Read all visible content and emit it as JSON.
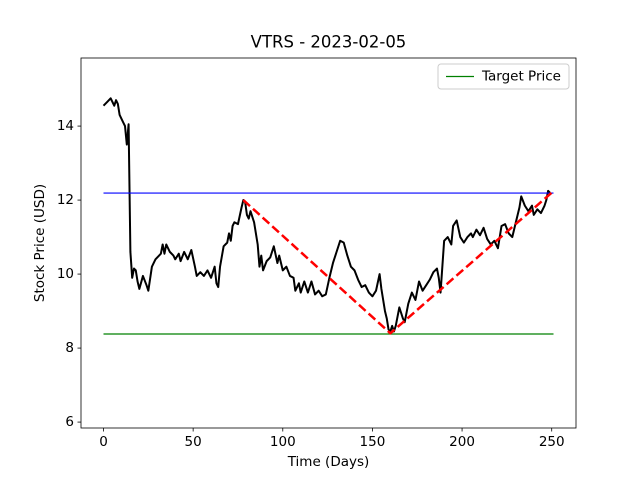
{
  "chart_data": {
    "type": "line",
    "title": "VTRS - 2023-02-05",
    "xlabel": "Time (Days)",
    "ylabel": "Stock Price (USD)",
    "xlim": [
      -12.55,
      263.55
    ],
    "ylim": [
      5.84,
      15.84
    ],
    "xticks": [
      0,
      50,
      100,
      150,
      200,
      250
    ],
    "yticks": [
      6,
      8,
      10,
      12,
      14
    ],
    "legend": "upper right",
    "series": [
      {
        "color": "#000000",
        "width": 2,
        "x": [
          0,
          2,
          4,
          6,
          7,
          8,
          9,
          11,
          12,
          13,
          14,
          15,
          16,
          17,
          18,
          19,
          20,
          22,
          24,
          25,
          27,
          29,
          32,
          33,
          34,
          35,
          37,
          39,
          40,
          42,
          43,
          45,
          47,
          49,
          51,
          52,
          54,
          56,
          58,
          60,
          62,
          63,
          64,
          65,
          67,
          69,
          70,
          71,
          72,
          73,
          75,
          77,
          78,
          79,
          80,
          81,
          82,
          84,
          86,
          87,
          88,
          89,
          91,
          93,
          95,
          97,
          98,
          100,
          102,
          104,
          106,
          107,
          109,
          110,
          112,
          114,
          116,
          118,
          120,
          122,
          124,
          126,
          128,
          130,
          132,
          134,
          136,
          138,
          140,
          142,
          144,
          146,
          148,
          150,
          152,
          154,
          155,
          156,
          157,
          158,
          159,
          160,
          161,
          162,
          163,
          165,
          167,
          168,
          170,
          172,
          174,
          176,
          178,
          180,
          182,
          184,
          186,
          187,
          188,
          190,
          192,
          194,
          195,
          197,
          199,
          201,
          203,
          205,
          206,
          208,
          210,
          212,
          214,
          216,
          218,
          220,
          222,
          224,
          226,
          228,
          230,
          231,
          232,
          233,
          235,
          237,
          239,
          240,
          242,
          244,
          246,
          247,
          248,
          249
        ],
        "values": [
          14.55,
          14.65,
          14.75,
          14.55,
          14.7,
          14.6,
          14.3,
          14.1,
          14.0,
          13.5,
          14.05,
          10.6,
          9.9,
          10.15,
          10.1,
          9.8,
          9.6,
          9.95,
          9.7,
          9.55,
          10.2,
          10.4,
          10.55,
          10.8,
          10.55,
          10.8,
          10.6,
          10.5,
          10.4,
          10.55,
          10.35,
          10.6,
          10.4,
          10.65,
          10.2,
          9.95,
          10.05,
          9.95,
          10.1,
          9.9,
          10.2,
          9.75,
          9.65,
          10.2,
          10.75,
          10.85,
          11.1,
          10.9,
          11.3,
          11.4,
          11.35,
          11.8,
          12.0,
          11.95,
          11.6,
          11.5,
          11.7,
          11.4,
          10.8,
          10.2,
          10.5,
          10.1,
          10.35,
          10.45,
          10.75,
          10.3,
          10.5,
          10.1,
          10.2,
          9.95,
          9.9,
          9.55,
          9.75,
          9.5,
          9.8,
          9.5,
          9.8,
          9.45,
          9.55,
          9.4,
          9.45,
          9.9,
          10.3,
          10.6,
          10.9,
          10.85,
          10.5,
          10.2,
          10.1,
          9.85,
          9.65,
          9.7,
          9.5,
          9.4,
          9.55,
          10.0,
          9.6,
          9.3,
          9.0,
          8.8,
          8.5,
          8.45,
          8.6,
          8.45,
          8.6,
          9.1,
          8.8,
          8.7,
          9.2,
          9.5,
          9.3,
          9.8,
          9.55,
          9.7,
          9.85,
          10.05,
          10.15,
          9.9,
          9.5,
          10.9,
          11.0,
          10.8,
          11.3,
          11.45,
          11.0,
          10.85,
          11.0,
          11.1,
          11.0,
          11.2,
          11.05,
          11.25,
          10.95,
          10.8,
          10.9,
          10.7,
          11.3,
          11.35,
          11.1,
          11.0,
          11.4,
          11.6,
          11.8,
          12.1,
          11.85,
          11.7,
          11.85,
          11.6,
          11.75,
          11.65,
          11.85,
          12.0,
          12.25,
          12.2
        ]
      },
      {
        "color": "#0000ff",
        "width": 1.2,
        "x": [
          0,
          251
        ],
        "values": [
          12.19,
          12.19
        ]
      },
      {
        "name": "Target Price",
        "color": "#008000",
        "width": 1.2,
        "x": [
          0,
          251
        ],
        "values": [
          8.38,
          8.38
        ]
      },
      {
        "color": "#ff0000",
        "width": 2.5,
        "dash": true,
        "x": [
          78,
          160,
          250
        ],
        "values": [
          12.0,
          8.4,
          12.2
        ]
      }
    ]
  }
}
